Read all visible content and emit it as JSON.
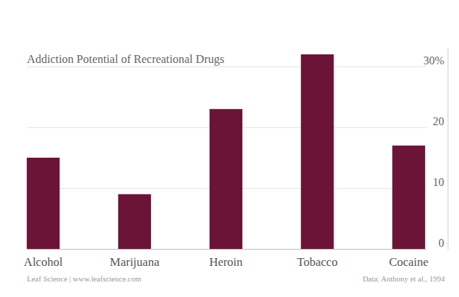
{
  "chart_data": {
    "type": "bar",
    "title": "Addiction Potential of Recreational Drugs",
    "categories": [
      "Alcohol",
      "Marijuana",
      "Heroin",
      "Tobacco",
      "Cocaine"
    ],
    "values": [
      15,
      9,
      23,
      32,
      17
    ],
    "color": "#6b1438",
    "ylim": [
      0,
      33
    ],
    "yticks": [
      0,
      10,
      20,
      {
        "value": 30,
        "label": "30%"
      }
    ],
    "grid": true,
    "credit": "Leaf Science | www.leafscience.com",
    "source": "Data: Anthony et al., 1994"
  }
}
